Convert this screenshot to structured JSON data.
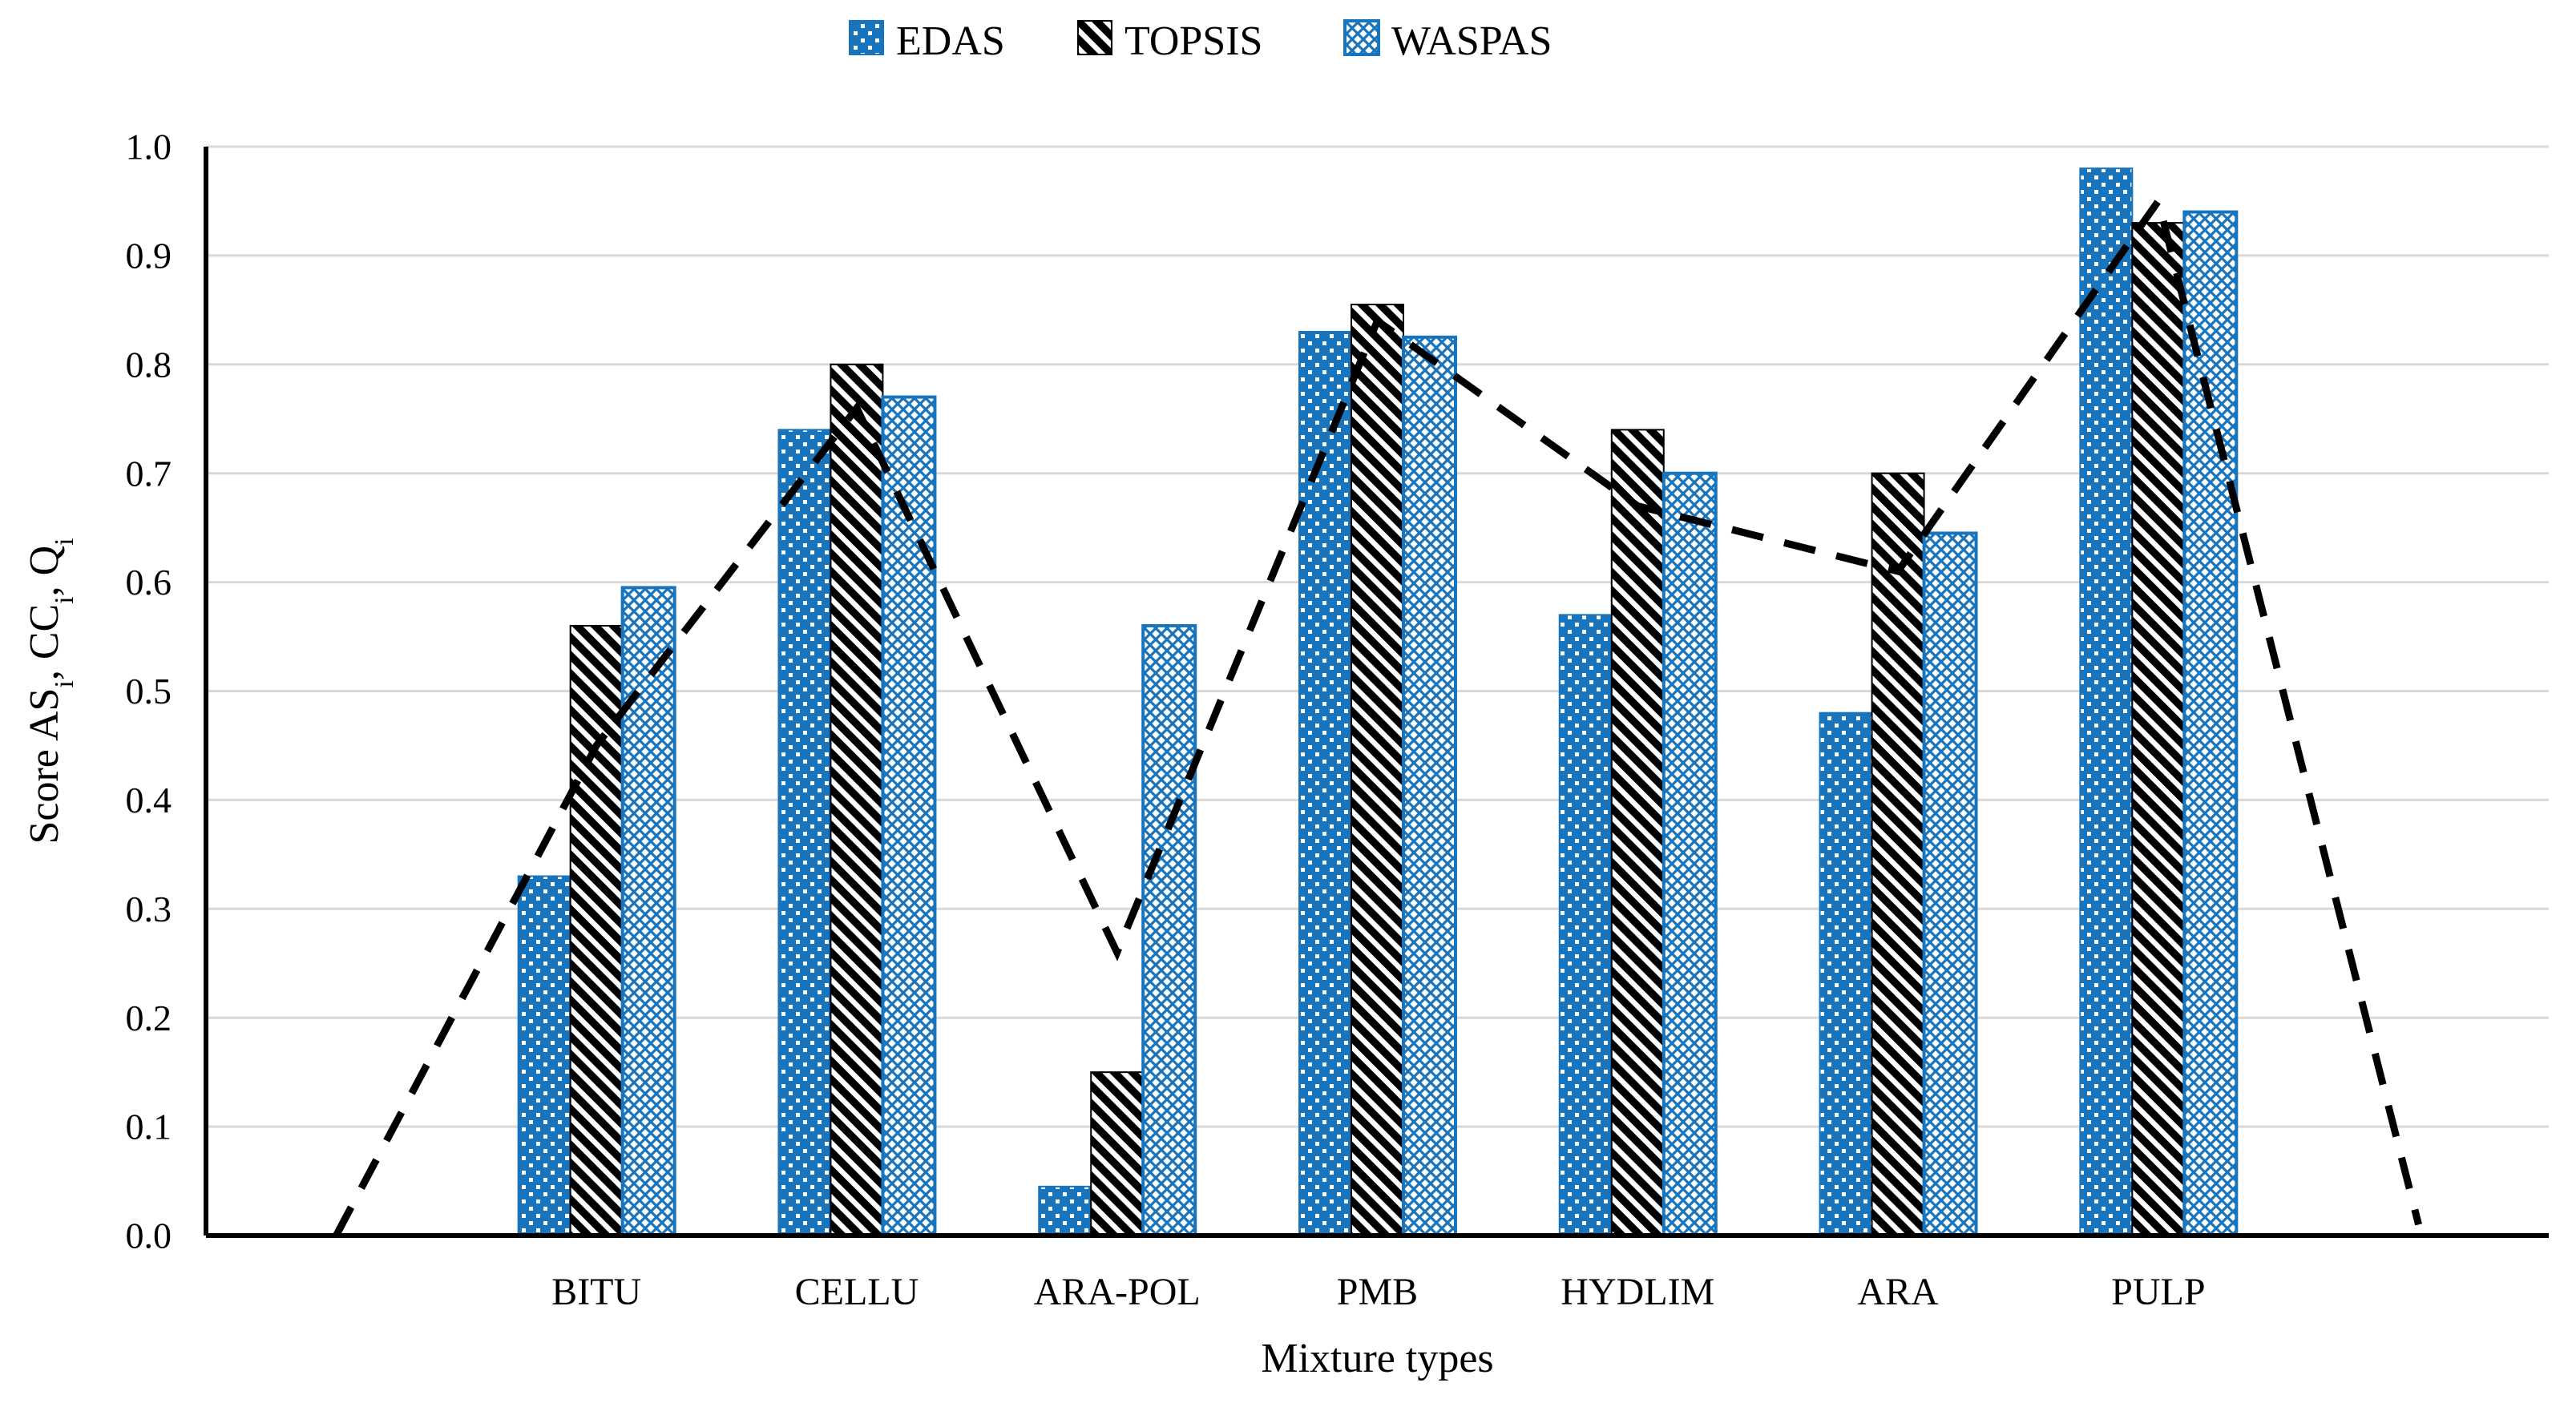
{
  "figure": {
    "background": "#ffffff"
  },
  "colors": {
    "series_blue": "#1874BC",
    "hatch_black": "#000000",
    "gridline": "#D9D9D9",
    "axis": "#000000",
    "text": "#000000",
    "line_dashed": "#000000"
  },
  "legend": {
    "position": "top-center",
    "items": [
      {
        "label": "EDAS",
        "marker": "blue-dotted-square"
      },
      {
        "label": "TOPSIS",
        "marker": "black-diagonal-hatch-square"
      },
      {
        "label": "WASPAS",
        "marker": "blue-crosshatch-square"
      }
    ]
  },
  "y_axis": {
    "min": 0.0,
    "max": 1.0,
    "step": 0.1,
    "tick_labels": [
      "0.0",
      "0.1",
      "0.2",
      "0.3",
      "0.4",
      "0.5",
      "0.6",
      "0.7",
      "0.8",
      "0.9",
      "1.0"
    ],
    "title_segments": [
      {
        "t": "Score AS",
        "sub": false
      },
      {
        "t": "i",
        "sub": true
      },
      {
        "t": ", CC",
        "sub": false
      },
      {
        "t": "i",
        "sub": true
      },
      {
        "t": ", Q",
        "sub": false
      },
      {
        "t": "i",
        "sub": true
      }
    ],
    "title_plain": "Score ASi, CCi, Qi"
  },
  "x_axis": {
    "title": "Mixture types"
  },
  "chart_data": {
    "type": "bar",
    "title": "",
    "xlabel": "Mixture types",
    "ylabel": "Score ASi, CCi, Qi",
    "ylim": [
      0.0,
      1.0
    ],
    "grid": true,
    "legend_position": "top",
    "categories": [
      "BITU",
      "CELLU",
      "ARA-POL",
      "PMB",
      "HYDLIM",
      "ARA",
      "PULP"
    ],
    "series": [
      {
        "name": "EDAS",
        "pattern": "blue-with-white-dots",
        "values": [
          0.33,
          0.74,
          0.045,
          0.83,
          0.57,
          0.48,
          0.98
        ]
      },
      {
        "name": "TOPSIS",
        "pattern": "black-diagonal-hatch",
        "values": [
          0.56,
          0.8,
          0.15,
          0.855,
          0.74,
          0.7,
          0.93
        ]
      },
      {
        "name": "WASPAS",
        "pattern": "blue-crosshatch",
        "values": [
          0.595,
          0.77,
          0.56,
          0.825,
          0.7,
          0.645,
          0.94
        ]
      }
    ],
    "line_series": {
      "name": "dashed-score-line",
      "style": "dashed",
      "color": "#000000",
      "note": "polyline spanning 9 slots: one empty slot before BITU and one after PULP, both near zero",
      "slot_values": [
        0.0,
        0.45,
        0.76,
        0.26,
        0.84,
        0.67,
        0.61,
        0.95,
        0.01
      ]
    }
  }
}
